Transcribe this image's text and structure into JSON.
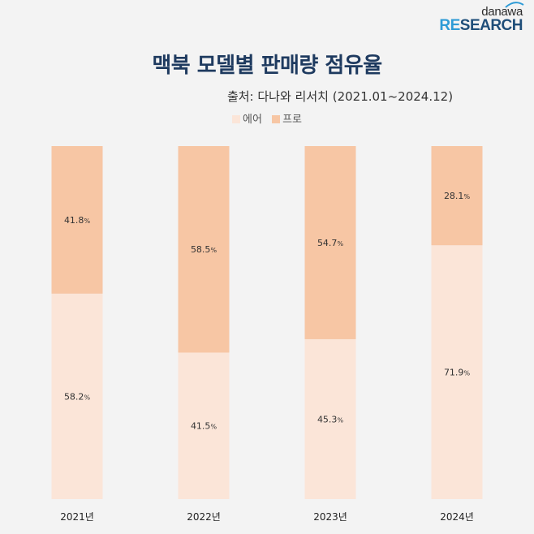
{
  "logo": {
    "top": "danawa",
    "bottom_hl": "RE",
    "bottom_rest": "SEARCH"
  },
  "title": "맥북 모델별 판매량 점유율",
  "source": "출처: 다나와 리서치 (2021.01~2024.12)",
  "colors": {
    "air": "#fbe5d8",
    "pro": "#f7c6a4",
    "background": "#f3f3f3"
  },
  "chart_data": {
    "type": "bar",
    "stacked": true,
    "categories": [
      "2021년",
      "2022년",
      "2023년",
      "2024년"
    ],
    "series": [
      {
        "name": "에어",
        "values": [
          58.2,
          41.5,
          45.3,
          71.9
        ]
      },
      {
        "name": "프로",
        "values": [
          41.8,
          58.5,
          54.7,
          28.1
        ]
      }
    ],
    "ylim": [
      0,
      100
    ],
    "unit": "%",
    "legend": "top-center",
    "grid": false
  }
}
